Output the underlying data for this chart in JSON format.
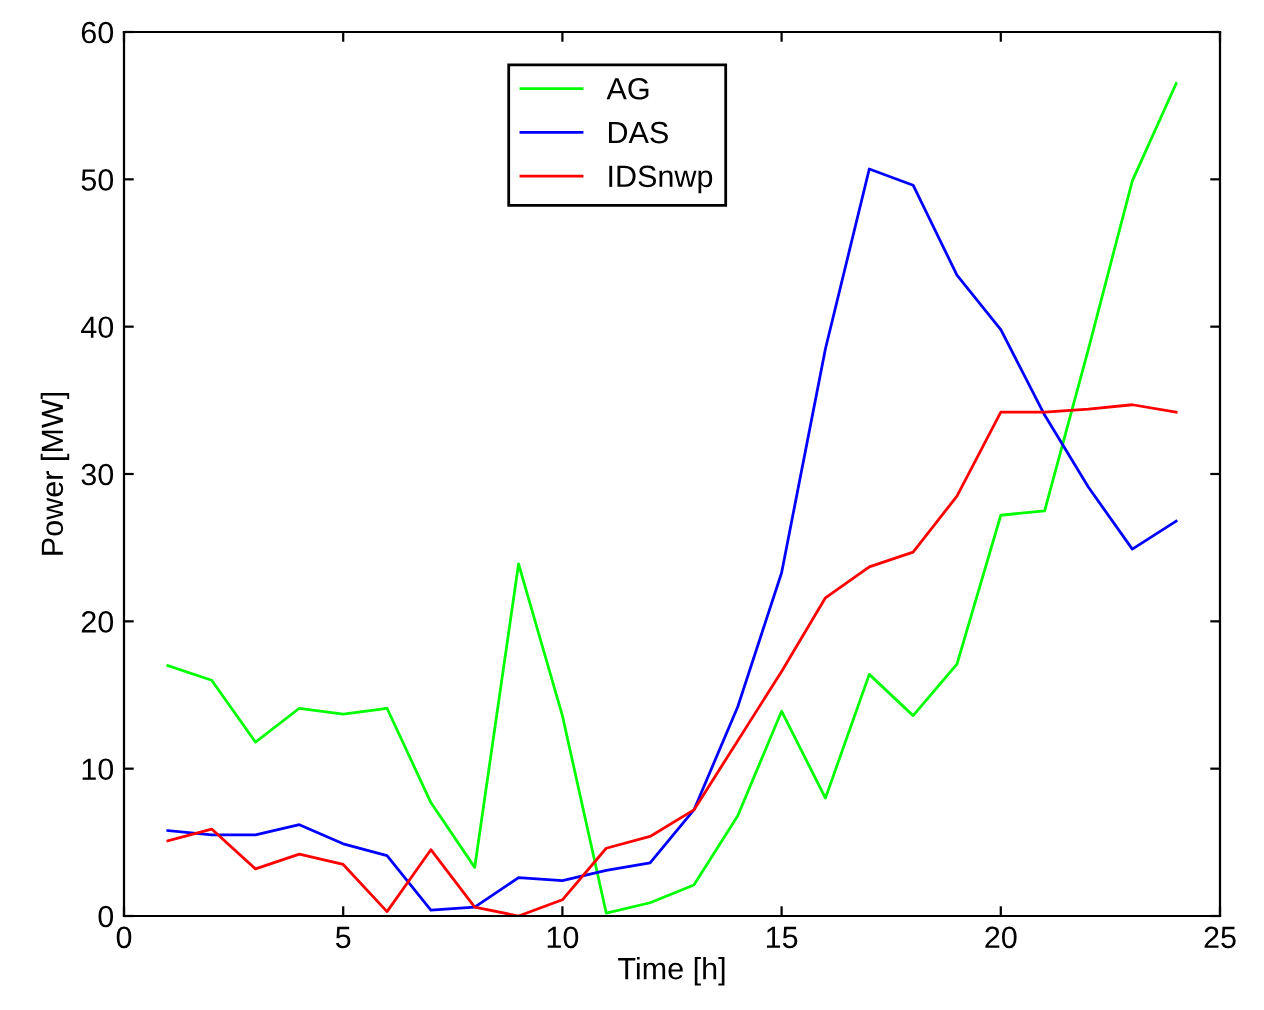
{
  "chart_data": {
    "type": "line",
    "xlabel": "Time [h]",
    "ylabel": "Power [MW]",
    "x": [
      1,
      2,
      3,
      4,
      5,
      6,
      7,
      8,
      9,
      10,
      11,
      12,
      13,
      14,
      15,
      16,
      17,
      18,
      19,
      20,
      21,
      22,
      23,
      24
    ],
    "series": [
      {
        "name": "AG",
        "color": "#00ff00",
        "values": [
          17,
          16,
          11.8,
          14.1,
          13.7,
          14.1,
          7.7,
          3.3,
          23.9,
          13.6,
          0.2,
          0.9,
          2.1,
          6.8,
          13.9,
          8.0,
          16.4,
          13.6,
          17.1,
          27.2,
          27.5,
          38.5,
          49.9,
          56.5
        ]
      },
      {
        "name": "DAS",
        "color": "#0000ff",
        "values": [
          5.8,
          5.5,
          5.5,
          6.2,
          4.9,
          4.1,
          0.4,
          0.6,
          2.6,
          2.4,
          3.1,
          3.6,
          7.2,
          14.2,
          23.3,
          38.5,
          50.7,
          49.6,
          43.5,
          39.8,
          34.0,
          29.1,
          24.9,
          26.8
        ]
      },
      {
        "name": "IDSnwp",
        "color": "#ff0000",
        "values": [
          5.1,
          5.9,
          3.2,
          4.2,
          3.5,
          0.3,
          4.5,
          0.6,
          0.0,
          1.1,
          4.6,
          5.4,
          7.2,
          11.9,
          16.6,
          21.6,
          23.7,
          24.7,
          28.5,
          34.2,
          34.2,
          34.4,
          34.7,
          34.2
        ]
      }
    ],
    "xlim": [
      0,
      25
    ],
    "xticks": [
      0,
      5,
      10,
      15,
      20,
      25
    ],
    "ylim": [
      0,
      60
    ],
    "yticks": [
      0,
      10,
      20,
      30,
      40,
      50,
      60
    ],
    "grid": false,
    "legend": "top",
    "marker": "none",
    "line_style": "solid"
  }
}
